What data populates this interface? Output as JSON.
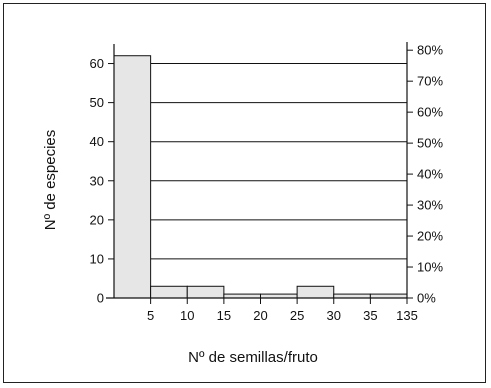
{
  "chart_data": {
    "type": "bar",
    "title": "",
    "xlabel": "Nº de semillas/fruto",
    "ylabel": "Nº de especies",
    "x_tick_labels": [
      "5",
      "10",
      "15",
      "20",
      "25",
      "30",
      "35",
      "135"
    ],
    "bins": [
      "0-5",
      "5-10",
      "10-15",
      "15-20",
      "20-25",
      "25-30",
      "30-35",
      "35-135"
    ],
    "values": [
      62,
      3,
      3,
      1,
      1,
      3,
      1,
      1
    ],
    "ylim": [
      0,
      65
    ],
    "y_ticks": [
      0,
      10,
      20,
      30,
      40,
      50,
      60
    ],
    "y2_ticks": [
      "0%",
      "10%",
      "20%",
      "30%",
      "40%",
      "50%",
      "60%",
      "70%",
      "80%"
    ],
    "y2_max_percent": 82,
    "grid": "horizontal",
    "bar_fill": "#e6e6e6",
    "bar_stroke": "#111111"
  }
}
